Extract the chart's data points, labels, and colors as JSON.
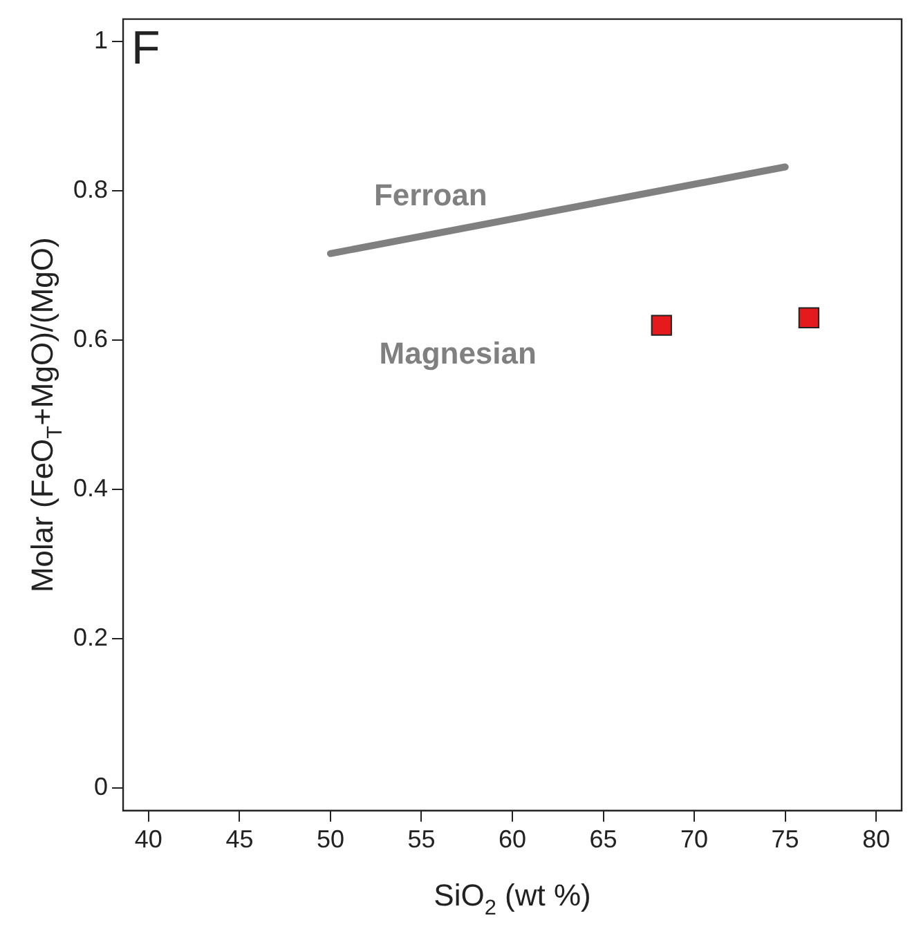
{
  "chart_data": {
    "type": "scatter",
    "xlabel": "SiO$_{2}$ (wt %)",
    "ylabel": "Molar (FeO$_{T}$+MgO)/(MgO)",
    "xlim": [
      38.6,
      81.4
    ],
    "ylim": [
      -0.03,
      1.03
    ],
    "xticks": [
      40,
      45,
      50,
      55,
      60,
      65,
      70,
      75,
      80
    ],
    "yticks": [
      0,
      0.2,
      0.4,
      0.6,
      0.8,
      1
    ],
    "grid": false,
    "legend": false,
    "marker": "square",
    "annotations": [
      "F",
      "Ferroan",
      "Magnesian"
    ],
    "series": [
      {
        "type": "line",
        "x": [
          50,
          75
        ],
        "values": [
          0.716,
          0.832
        ],
        "color": "#808080",
        "marker": "none"
      },
      {
        "type": "scatter",
        "x": [
          68.2,
          76.3
        ],
        "values": [
          0.62,
          0.63
        ],
        "color": "#e41a1c"
      }
    ]
  }
}
